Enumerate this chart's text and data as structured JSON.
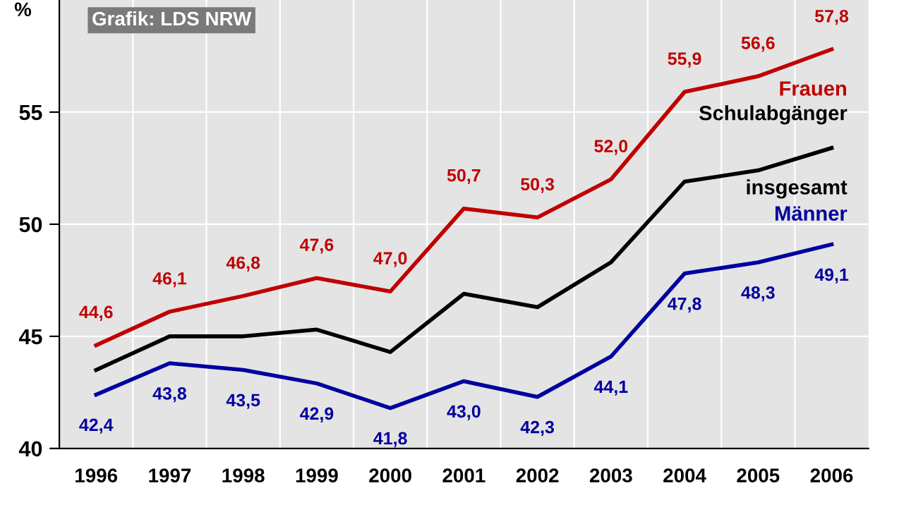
{
  "chart_data": {
    "type": "line",
    "ylabel": "%",
    "annotations": [
      "Grafik: LDS NRW"
    ],
    "categories": [
      "1996",
      "1997",
      "1998",
      "1999",
      "2000",
      "2001",
      "2002",
      "2003",
      "2004",
      "2005",
      "2006"
    ],
    "ylim": [
      40,
      60
    ],
    "yticks": [
      40,
      45,
      50,
      55
    ],
    "grid": true,
    "legend": false,
    "marker": "none",
    "line_style": "solid",
    "series": [
      {
        "name": "Frauen",
        "color": "#c00000",
        "values": [
          44.6,
          46.1,
          46.8,
          47.6,
          47.0,
          50.7,
          50.3,
          52.0,
          55.9,
          56.6,
          57.8
        ],
        "value_labels": [
          "44,6",
          "46,1",
          "46,8",
          "47,6",
          "47,0",
          "50,7",
          "50,3",
          "52,0",
          "55,9",
          "56,6",
          "57,8"
        ]
      },
      {
        "name": "Schulabgänger insgesamt",
        "color": "#000000",
        "values": [
          43.5,
          45.0,
          45.0,
          45.3,
          44.3,
          46.9,
          46.3,
          48.3,
          51.9,
          52.4,
          53.4
        ]
      },
      {
        "name": "Männer",
        "color": "#0000a0",
        "values": [
          42.4,
          43.8,
          43.5,
          42.9,
          41.8,
          43.0,
          42.3,
          44.1,
          47.8,
          48.3,
          49.1
        ],
        "value_labels": [
          "42,4",
          "43,8",
          "43,5",
          "42,9",
          "41,8",
          "43,0",
          "42,3",
          "44,1",
          "47,8",
          "48,3",
          "49,1"
        ]
      }
    ]
  }
}
